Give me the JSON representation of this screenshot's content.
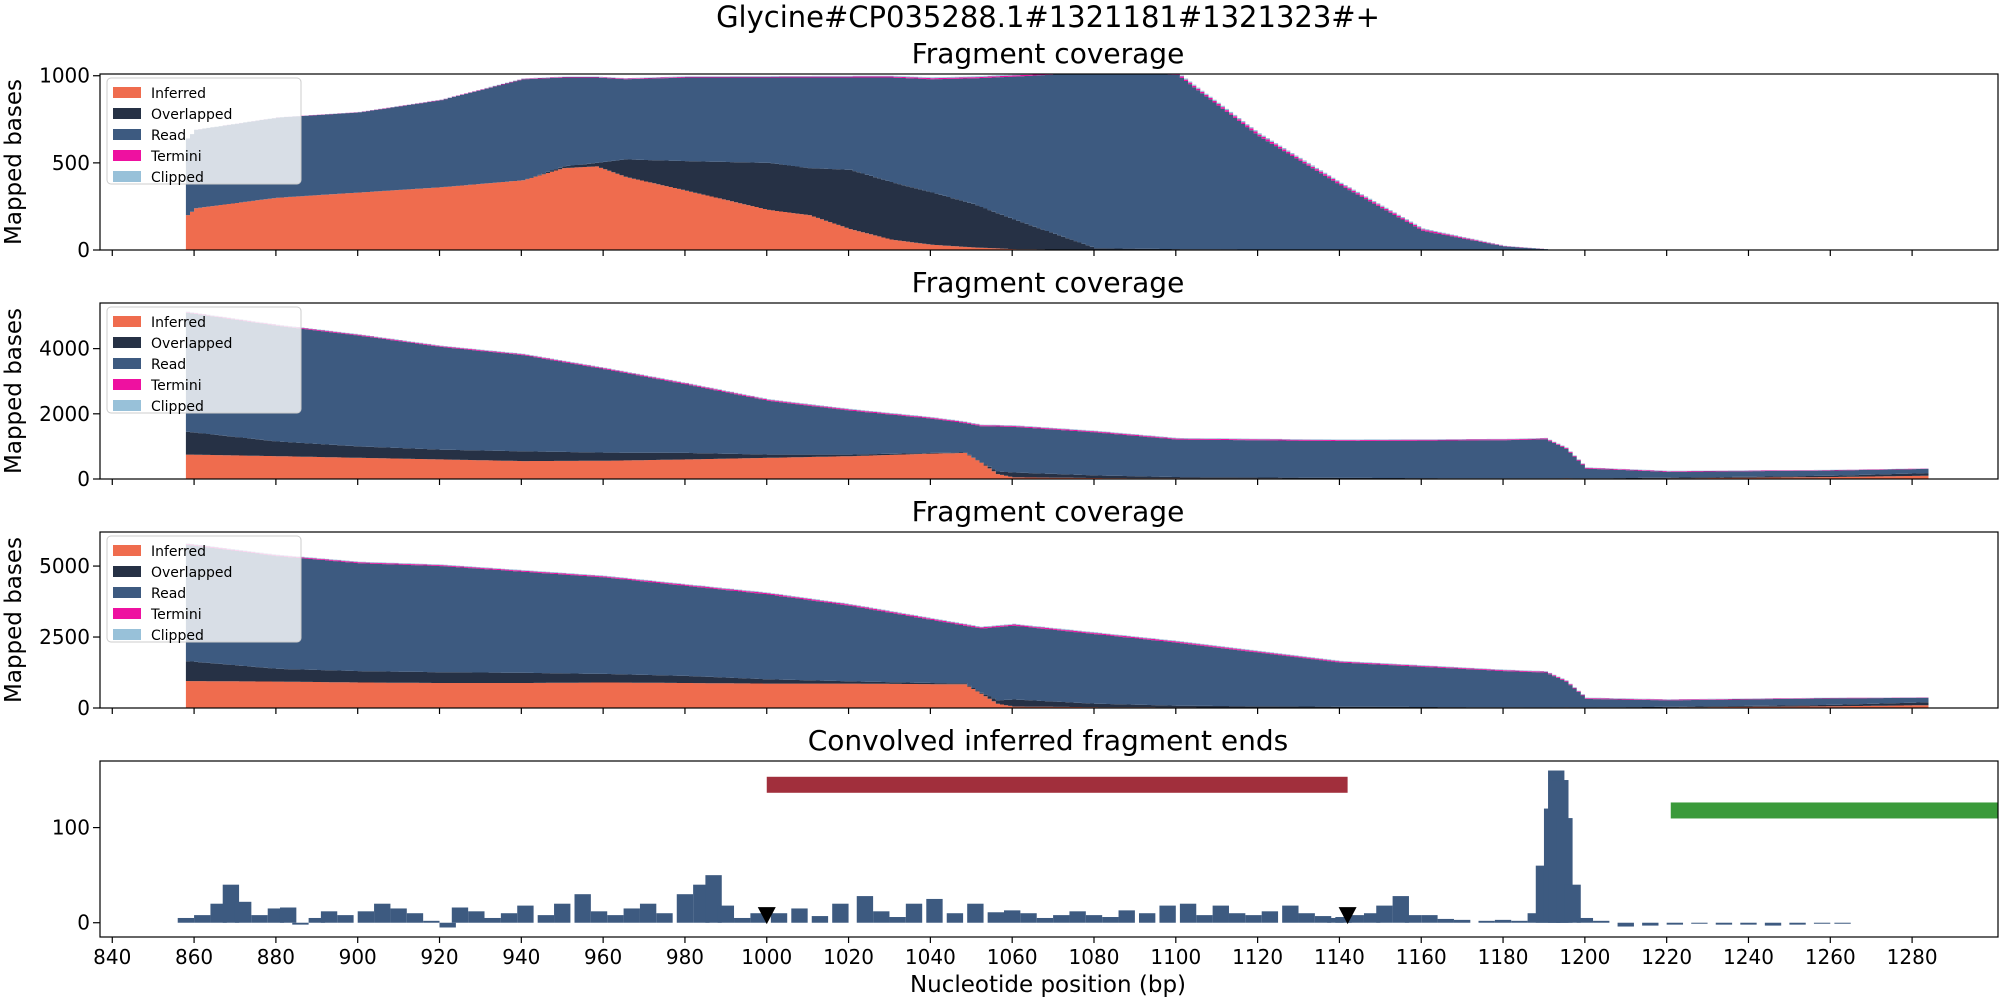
{
  "figure": {
    "suptitle": "Glycine#CP035288.1#1321181#1321323#+",
    "xlabel": "Nucleotide position (bp)",
    "x_ticks": [
      840,
      860,
      880,
      900,
      920,
      940,
      960,
      980,
      1000,
      1020,
      1040,
      1060,
      1080,
      1100,
      1120,
      1140,
      1160,
      1180,
      1200,
      1220,
      1240,
      1260,
      1280
    ],
    "xlim": [
      837,
      1301
    ]
  },
  "legend": [
    {
      "label": "Inferred",
      "color": "#ef6c4e"
    },
    {
      "label": "Overlapped",
      "color": "#263145"
    },
    {
      "label": "Read",
      "color": "#3d5a80"
    },
    {
      "label": "Termini",
      "color": "#ee11a0"
    },
    {
      "label": "Clipped",
      "color": "#98c1d9"
    }
  ],
  "chart_data": [
    {
      "type": "area",
      "title": "Fragment coverage",
      "ylabel": "Mapped bases",
      "ylim": [
        0,
        1010
      ],
      "yticks": [
        0,
        500,
        1000
      ],
      "x_range": [
        858,
        1190
      ],
      "series": [
        {
          "name": "Inferred",
          "x": [
            858,
            860,
            880,
            900,
            920,
            940,
            950,
            958,
            965,
            980,
            1000,
            1010,
            1020,
            1030,
            1040,
            1050,
            1060,
            1080,
            1100,
            1140,
            1180,
            1190
          ],
          "values": [
            200,
            240,
            300,
            330,
            360,
            400,
            470,
            480,
            420,
            340,
            230,
            200,
            120,
            60,
            30,
            15,
            5,
            0,
            0,
            0,
            0,
            0
          ]
        },
        {
          "name": "Overlapped",
          "x": [
            858,
            860,
            880,
            900,
            920,
            940,
            950,
            958,
            965,
            980,
            1000,
            1010,
            1020,
            1030,
            1040,
            1050,
            1060,
            1080,
            1100,
            1140,
            1180,
            1190
          ],
          "values": [
            0,
            0,
            0,
            0,
            0,
            0,
            10,
            20,
            100,
            170,
            270,
            270,
            340,
            330,
            300,
            250,
            170,
            10,
            5,
            0,
            0,
            0
          ]
        },
        {
          "name": "Read",
          "x": [
            858,
            860,
            880,
            900,
            920,
            940,
            950,
            958,
            965,
            980,
            1000,
            1010,
            1020,
            1030,
            1040,
            1050,
            1060,
            1080,
            1100,
            1120,
            1140,
            1160,
            1180,
            1190
          ],
          "values": [
            440,
            450,
            460,
            460,
            500,
            580,
            510,
            490,
            460,
            480,
            490,
            520,
            530,
            600,
            650,
            720,
            820,
            1010,
            1000,
            650,
            370,
            110,
            20,
            5
          ]
        },
        {
          "name": "Termini",
          "x": [
            858,
            1100,
            1120,
            1160,
            1190
          ],
          "values": [
            0,
            8,
            10,
            8,
            0
          ]
        },
        {
          "name": "Clipped",
          "x": [
            858,
            1100,
            1120,
            1160,
            1190
          ],
          "values": [
            0,
            6,
            8,
            6,
            0
          ]
        }
      ]
    },
    {
      "type": "area",
      "title": "Fragment coverage",
      "ylabel": "Mapped bases",
      "ylim": [
        0,
        5400
      ],
      "yticks": [
        0,
        2000,
        4000
      ],
      "x_range": [
        858,
        1283
      ],
      "series": [
        {
          "name": "Inferred",
          "x": [
            858,
            880,
            900,
            920,
            940,
            960,
            980,
            1000,
            1020,
            1040,
            1048,
            1052,
            1056,
            1060,
            1080,
            1100,
            1140,
            1180,
            1190,
            1195,
            1200,
            1220,
            1260,
            1283
          ],
          "values": [
            750,
            700,
            650,
            600,
            550,
            560,
            600,
            650,
            700,
            780,
            800,
            500,
            150,
            50,
            30,
            20,
            15,
            10,
            10,
            20,
            10,
            20,
            60,
            100
          ]
        },
        {
          "name": "Overlapped",
          "x": [
            858,
            880,
            900,
            920,
            940,
            960,
            980,
            1000,
            1020,
            1040,
            1048,
            1052,
            1056,
            1060,
            1080,
            1100,
            1140,
            1180,
            1190,
            1195,
            1200,
            1220,
            1260,
            1283
          ],
          "values": [
            700,
            450,
            350,
            300,
            300,
            250,
            200,
            100,
            50,
            20,
            15,
            20,
            80,
            150,
            80,
            40,
            20,
            10,
            10,
            10,
            10,
            20,
            40,
            80
          ]
        },
        {
          "name": "Read",
          "x": [
            858,
            880,
            900,
            920,
            940,
            960,
            980,
            1000,
            1020,
            1040,
            1048,
            1052,
            1056,
            1060,
            1080,
            1100,
            1140,
            1180,
            1190,
            1195,
            1200,
            1220,
            1260,
            1283
          ],
          "values": [
            3650,
            3550,
            3400,
            3150,
            2950,
            2560,
            2100,
            1650,
            1350,
            1050,
            900,
            1100,
            1380,
            1400,
            1320,
            1150,
            1130,
            1170,
            1200,
            900,
            300,
            180,
            160,
            130
          ]
        },
        {
          "name": "Termini",
          "x": [
            858,
            1000,
            1100,
            1190,
            1283
          ],
          "values": [
            20,
            30,
            30,
            25,
            10
          ]
        },
        {
          "name": "Clipped",
          "x": [
            858,
            1000,
            1100,
            1190,
            1283
          ],
          "values": [
            15,
            20,
            20,
            15,
            5
          ]
        }
      ]
    },
    {
      "type": "area",
      "title": "Fragment coverage",
      "ylabel": "Mapped bases",
      "ylim": [
        0,
        6200
      ],
      "yticks": [
        0,
        2500,
        5000
      ],
      "x_range": [
        858,
        1283
      ],
      "series": [
        {
          "name": "Inferred",
          "x": [
            858,
            880,
            900,
            920,
            940,
            960,
            980,
            1000,
            1020,
            1040,
            1048,
            1052,
            1056,
            1060,
            1080,
            1100,
            1140,
            1180,
            1190,
            1195,
            1200,
            1220,
            1260,
            1283
          ],
          "values": [
            950,
            930,
            900,
            880,
            880,
            900,
            880,
            860,
            860,
            840,
            840,
            500,
            150,
            50,
            30,
            20,
            15,
            10,
            10,
            20,
            10,
            20,
            60,
            100
          ]
        },
        {
          "name": "Overlapped",
          "x": [
            858,
            880,
            900,
            920,
            940,
            960,
            980,
            1000,
            1020,
            1040,
            1048,
            1052,
            1056,
            1060,
            1080,
            1100,
            1140,
            1180,
            1190,
            1195,
            1200,
            1220,
            1260,
            1283
          ],
          "values": [
            700,
            450,
            400,
            380,
            360,
            300,
            250,
            150,
            80,
            40,
            30,
            40,
            120,
            250,
            120,
            60,
            30,
            15,
            10,
            10,
            10,
            20,
            50,
            100
          ]
        },
        {
          "name": "Read",
          "x": [
            858,
            880,
            900,
            920,
            940,
            960,
            980,
            1000,
            1020,
            1040,
            1048,
            1052,
            1056,
            1060,
            1080,
            1100,
            1140,
            1180,
            1190,
            1195,
            1200,
            1220,
            1260,
            1283
          ],
          "values": [
            4100,
            3970,
            3800,
            3740,
            3560,
            3400,
            3170,
            2990,
            2660,
            2220,
            2030,
            2260,
            2580,
            2600,
            2450,
            2220,
            1555,
            1275,
            1230,
            900,
            300,
            230,
            230,
            160
          ]
        },
        {
          "name": "Termini",
          "x": [
            858,
            1000,
            1100,
            1190,
            1283
          ],
          "values": [
            30,
            40,
            40,
            30,
            10
          ]
        },
        {
          "name": "Clipped",
          "x": [
            858,
            1000,
            1100,
            1190,
            1283
          ],
          "values": [
            20,
            25,
            25,
            20,
            5
          ]
        }
      ]
    },
    {
      "type": "bar",
      "title": "Convolved inferred fragment ends",
      "ylabel": "",
      "ylim": [
        -15,
        170
      ],
      "yticks": [
        0,
        100
      ],
      "x": [
        858,
        862,
        866,
        869,
        872,
        876,
        880,
        883,
        886,
        890,
        893,
        897,
        902,
        906,
        910,
        914,
        918,
        922,
        925,
        929,
        933,
        937,
        941,
        946,
        950,
        955,
        959,
        963,
        967,
        971,
        975,
        980,
        984,
        987,
        990,
        994,
        998,
        1003,
        1008,
        1013,
        1018,
        1024,
        1028,
        1032,
        1036,
        1041,
        1046,
        1051,
        1056,
        1060,
        1064,
        1068,
        1072,
        1076,
        1080,
        1084,
        1088,
        1093,
        1098,
        1103,
        1107,
        1111,
        1115,
        1119,
        1123,
        1128,
        1132,
        1136,
        1139,
        1141,
        1144,
        1148,
        1151,
        1155,
        1158,
        1162,
        1166,
        1170,
        1176,
        1180,
        1184,
        1188,
        1190,
        1192,
        1193,
        1194,
        1195,
        1197,
        1200,
        1204,
        1210,
        1216,
        1222,
        1228,
        1234,
        1240,
        1246,
        1252,
        1258,
        1263
      ],
      "values": [
        5,
        8,
        20,
        40,
        22,
        8,
        15,
        16,
        -2,
        5,
        12,
        8,
        12,
        20,
        15,
        10,
        2,
        -5,
        16,
        12,
        5,
        10,
        18,
        8,
        20,
        30,
        12,
        8,
        15,
        20,
        10,
        30,
        40,
        50,
        18,
        5,
        10,
        10,
        15,
        7,
        20,
        28,
        12,
        6,
        20,
        25,
        10,
        20,
        11,
        13,
        10,
        5,
        8,
        12,
        8,
        6,
        13,
        10,
        18,
        20,
        8,
        18,
        10,
        8,
        12,
        18,
        10,
        7,
        5,
        6,
        8,
        10,
        18,
        28,
        8,
        8,
        4,
        3,
        2,
        3,
        2,
        10,
        60,
        120,
        160,
        150,
        110,
        40,
        5,
        2,
        -4,
        -3,
        -2,
        -1,
        -2,
        -2,
        -3,
        -2,
        -1,
        -1
      ],
      "markers": [
        {
          "x": 1000,
          "y": 8
        },
        {
          "x": 1142,
          "y": 8
        }
      ],
      "intervals": [
        {
          "x0": 1000,
          "x1": 1142,
          "y": 145,
          "color": "#a12f3c"
        },
        {
          "x0": 1221,
          "x1": 1301,
          "y": 118,
          "color": "#3a9a3a"
        }
      ]
    }
  ]
}
